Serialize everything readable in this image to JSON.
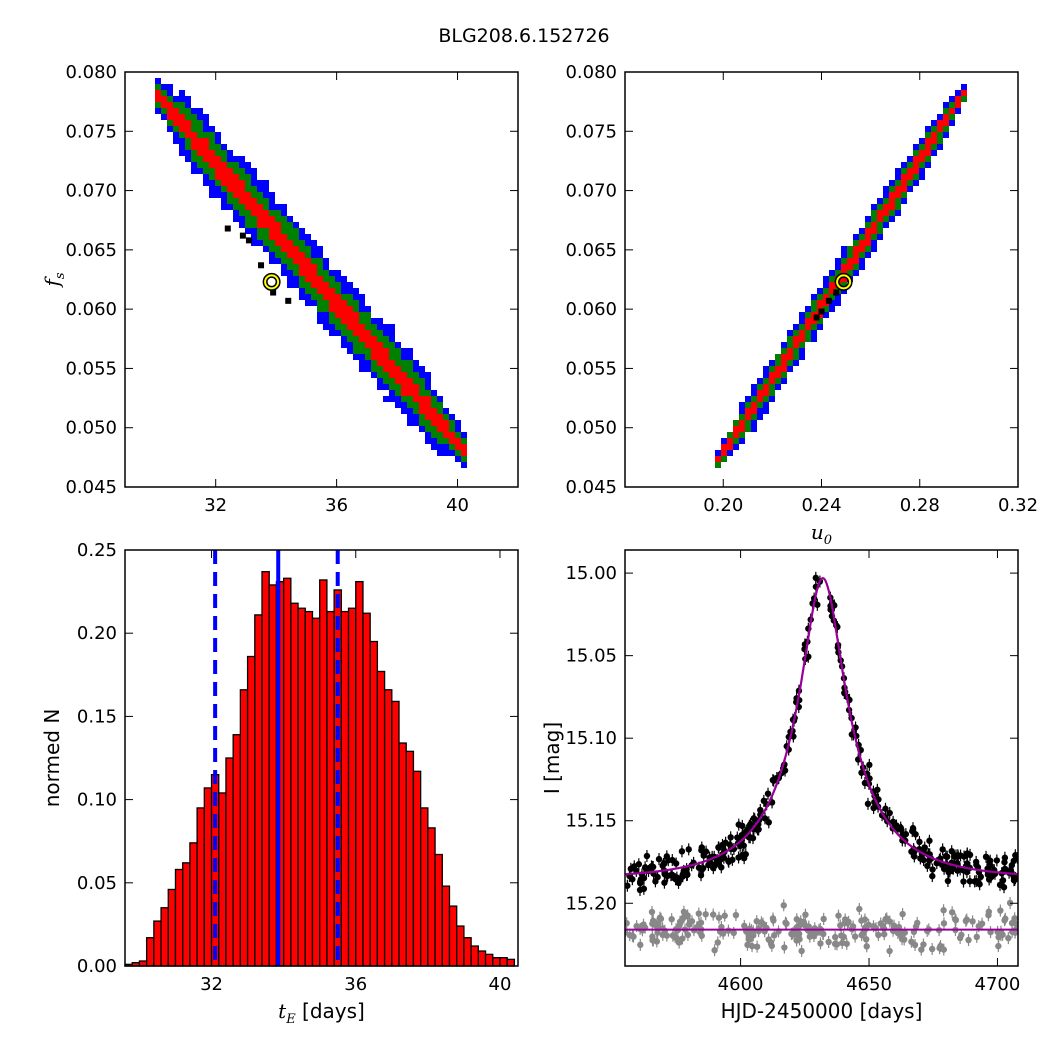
{
  "figure": {
    "title": "BLG208.6.152726"
  },
  "chart_data": [
    {
      "id": "fs-vs-tE",
      "type": "heatmap",
      "xlabel": "",
      "ylabel": "f_s",
      "xlim": [
        29,
        42
      ],
      "ylim": [
        0.045,
        0.08
      ],
      "xticks": [
        32,
        36,
        40
      ],
      "xtick_labels": [
        "32",
        "36",
        "40"
      ],
      "yticks": [
        0.045,
        0.05,
        0.055,
        0.06,
        0.065,
        0.07,
        0.075,
        0.08
      ],
      "ytick_labels": [
        "0.045",
        "0.050",
        "0.055",
        "0.060",
        "0.065",
        "0.070",
        "0.075",
        "0.080"
      ],
      "levels": [
        {
          "color": "#0000ff",
          "width": 0.003
        },
        {
          "color": "#008000",
          "width": 0.002
        },
        {
          "color": "#ff0000",
          "width": 0.0009
        }
      ],
      "ridge": {
        "x_start": 30.0,
        "x_end": 40.3,
        "y_at_start": 0.0782,
        "y_at_end": 0.0478
      },
      "best_fit": {
        "x": 33.85,
        "y": 0.0623
      },
      "black_points": [
        [
          32.4,
          0.0668
        ],
        [
          32.9,
          0.0662
        ],
        [
          33.5,
          0.0637
        ],
        [
          33.9,
          0.0614
        ],
        [
          34.4,
          0.0607
        ],
        [
          33.1,
          0.0658
        ]
      ]
    },
    {
      "id": "fs-vs-u0",
      "type": "heatmap",
      "xlabel": "u_0",
      "ylabel": "",
      "xlim": [
        0.16,
        0.32
      ],
      "ylim": [
        0.045,
        0.08
      ],
      "xticks": [
        0.2,
        0.24,
        0.28,
        0.32
      ],
      "xtick_labels": [
        "0.20",
        "0.24",
        "0.28",
        "0.32"
      ],
      "yticks": [
        0.045,
        0.05,
        0.055,
        0.06,
        0.065,
        0.07,
        0.075,
        0.08
      ],
      "ytick_labels": [
        "0.045",
        "0.050",
        "0.055",
        "0.060",
        "0.065",
        "0.070",
        "0.075",
        "0.080"
      ],
      "levels": [
        {
          "color": "#0000ff",
          "width": 0.0018
        },
        {
          "color": "#008000",
          "width": 0.0012
        },
        {
          "color": "#ff0000",
          "width": 0.0006
        }
      ],
      "ridge": {
        "x_start": 0.197,
        "x_end": 0.299,
        "y_at_start": 0.047,
        "y_at_end": 0.0785
      },
      "best_fit": {
        "x": 0.249,
        "y": 0.0623
      },
      "black_points": [
        [
          0.24,
          0.0598
        ],
        [
          0.243,
          0.0607
        ],
        [
          0.246,
          0.0614
        ],
        [
          0.238,
          0.0593
        ]
      ]
    },
    {
      "id": "tE-histogram",
      "type": "bar",
      "xlabel": "t_E [days]",
      "ylabel": "normed N",
      "xlim": [
        29.6,
        40.5
      ],
      "ylim": [
        0,
        0.25
      ],
      "xticks": [
        32,
        36,
        40
      ],
      "xtick_labels": [
        "32",
        "36",
        "40"
      ],
      "yticks": [
        0,
        0.05,
        0.1,
        0.15,
        0.2,
        0.25
      ],
      "ytick_labels": [
        "0.00",
        "0.05",
        "0.10",
        "0.15",
        "0.20",
        "0.25"
      ],
      "bin_start": 29.6,
      "bin_width": 0.2,
      "values": [
        0.001,
        0.002,
        0.003,
        0.017,
        0.027,
        0.035,
        0.046,
        0.058,
        0.062,
        0.074,
        0.095,
        0.107,
        0.115,
        0.104,
        0.125,
        0.139,
        0.166,
        0.186,
        0.211,
        0.237,
        0.229,
        0.231,
        0.233,
        0.218,
        0.215,
        0.213,
        0.209,
        0.232,
        0.213,
        0.226,
        0.213,
        0.215,
        0.231,
        0.212,
        0.195,
        0.177,
        0.166,
        0.159,
        0.134,
        0.129,
        0.117,
        0.095,
        0.083,
        0.067,
        0.048,
        0.036,
        0.024,
        0.017,
        0.012,
        0.009,
        0.007,
        0.005,
        0.005,
        0.004,
        0.004,
        0.004,
        0.003,
        0.002,
        0.001,
        0.001,
        0.001,
        0.002,
        0.003,
        0.001
      ],
      "bar_color": "#ff0000",
      "median": 33.85,
      "interval": [
        32.1,
        35.5
      ],
      "line_color": "#0000ff"
    },
    {
      "id": "light-curve",
      "type": "scatter",
      "xlabel": "HJD-2450000 [days]",
      "ylabel": "I [mag]",
      "xlim": [
        4555,
        4708
      ],
      "ylim": [
        15.238,
        14.986
      ],
      "xticks": [
        4600,
        4650,
        4700
      ],
      "xtick_labels": [
        "4600",
        "4650",
        "4700"
      ],
      "yticks": [
        15.0,
        15.05,
        15.1,
        15.15,
        15.2
      ],
      "ytick_labels": [
        "15.00",
        "15.05",
        "15.10",
        "15.15",
        "15.20"
      ],
      "model": {
        "baseline": 15.185,
        "peak": 15.003,
        "t0": 4632,
        "tE": 33.85,
        "u0": 0.249,
        "fs": 0.0623,
        "color": "#990099"
      },
      "comparison": {
        "level": 15.216,
        "color": "#888888"
      },
      "series": [
        {
          "name": "",
          "color": "#000000"
        },
        {
          "name": "",
          "color": "#888888"
        }
      ]
    }
  ]
}
